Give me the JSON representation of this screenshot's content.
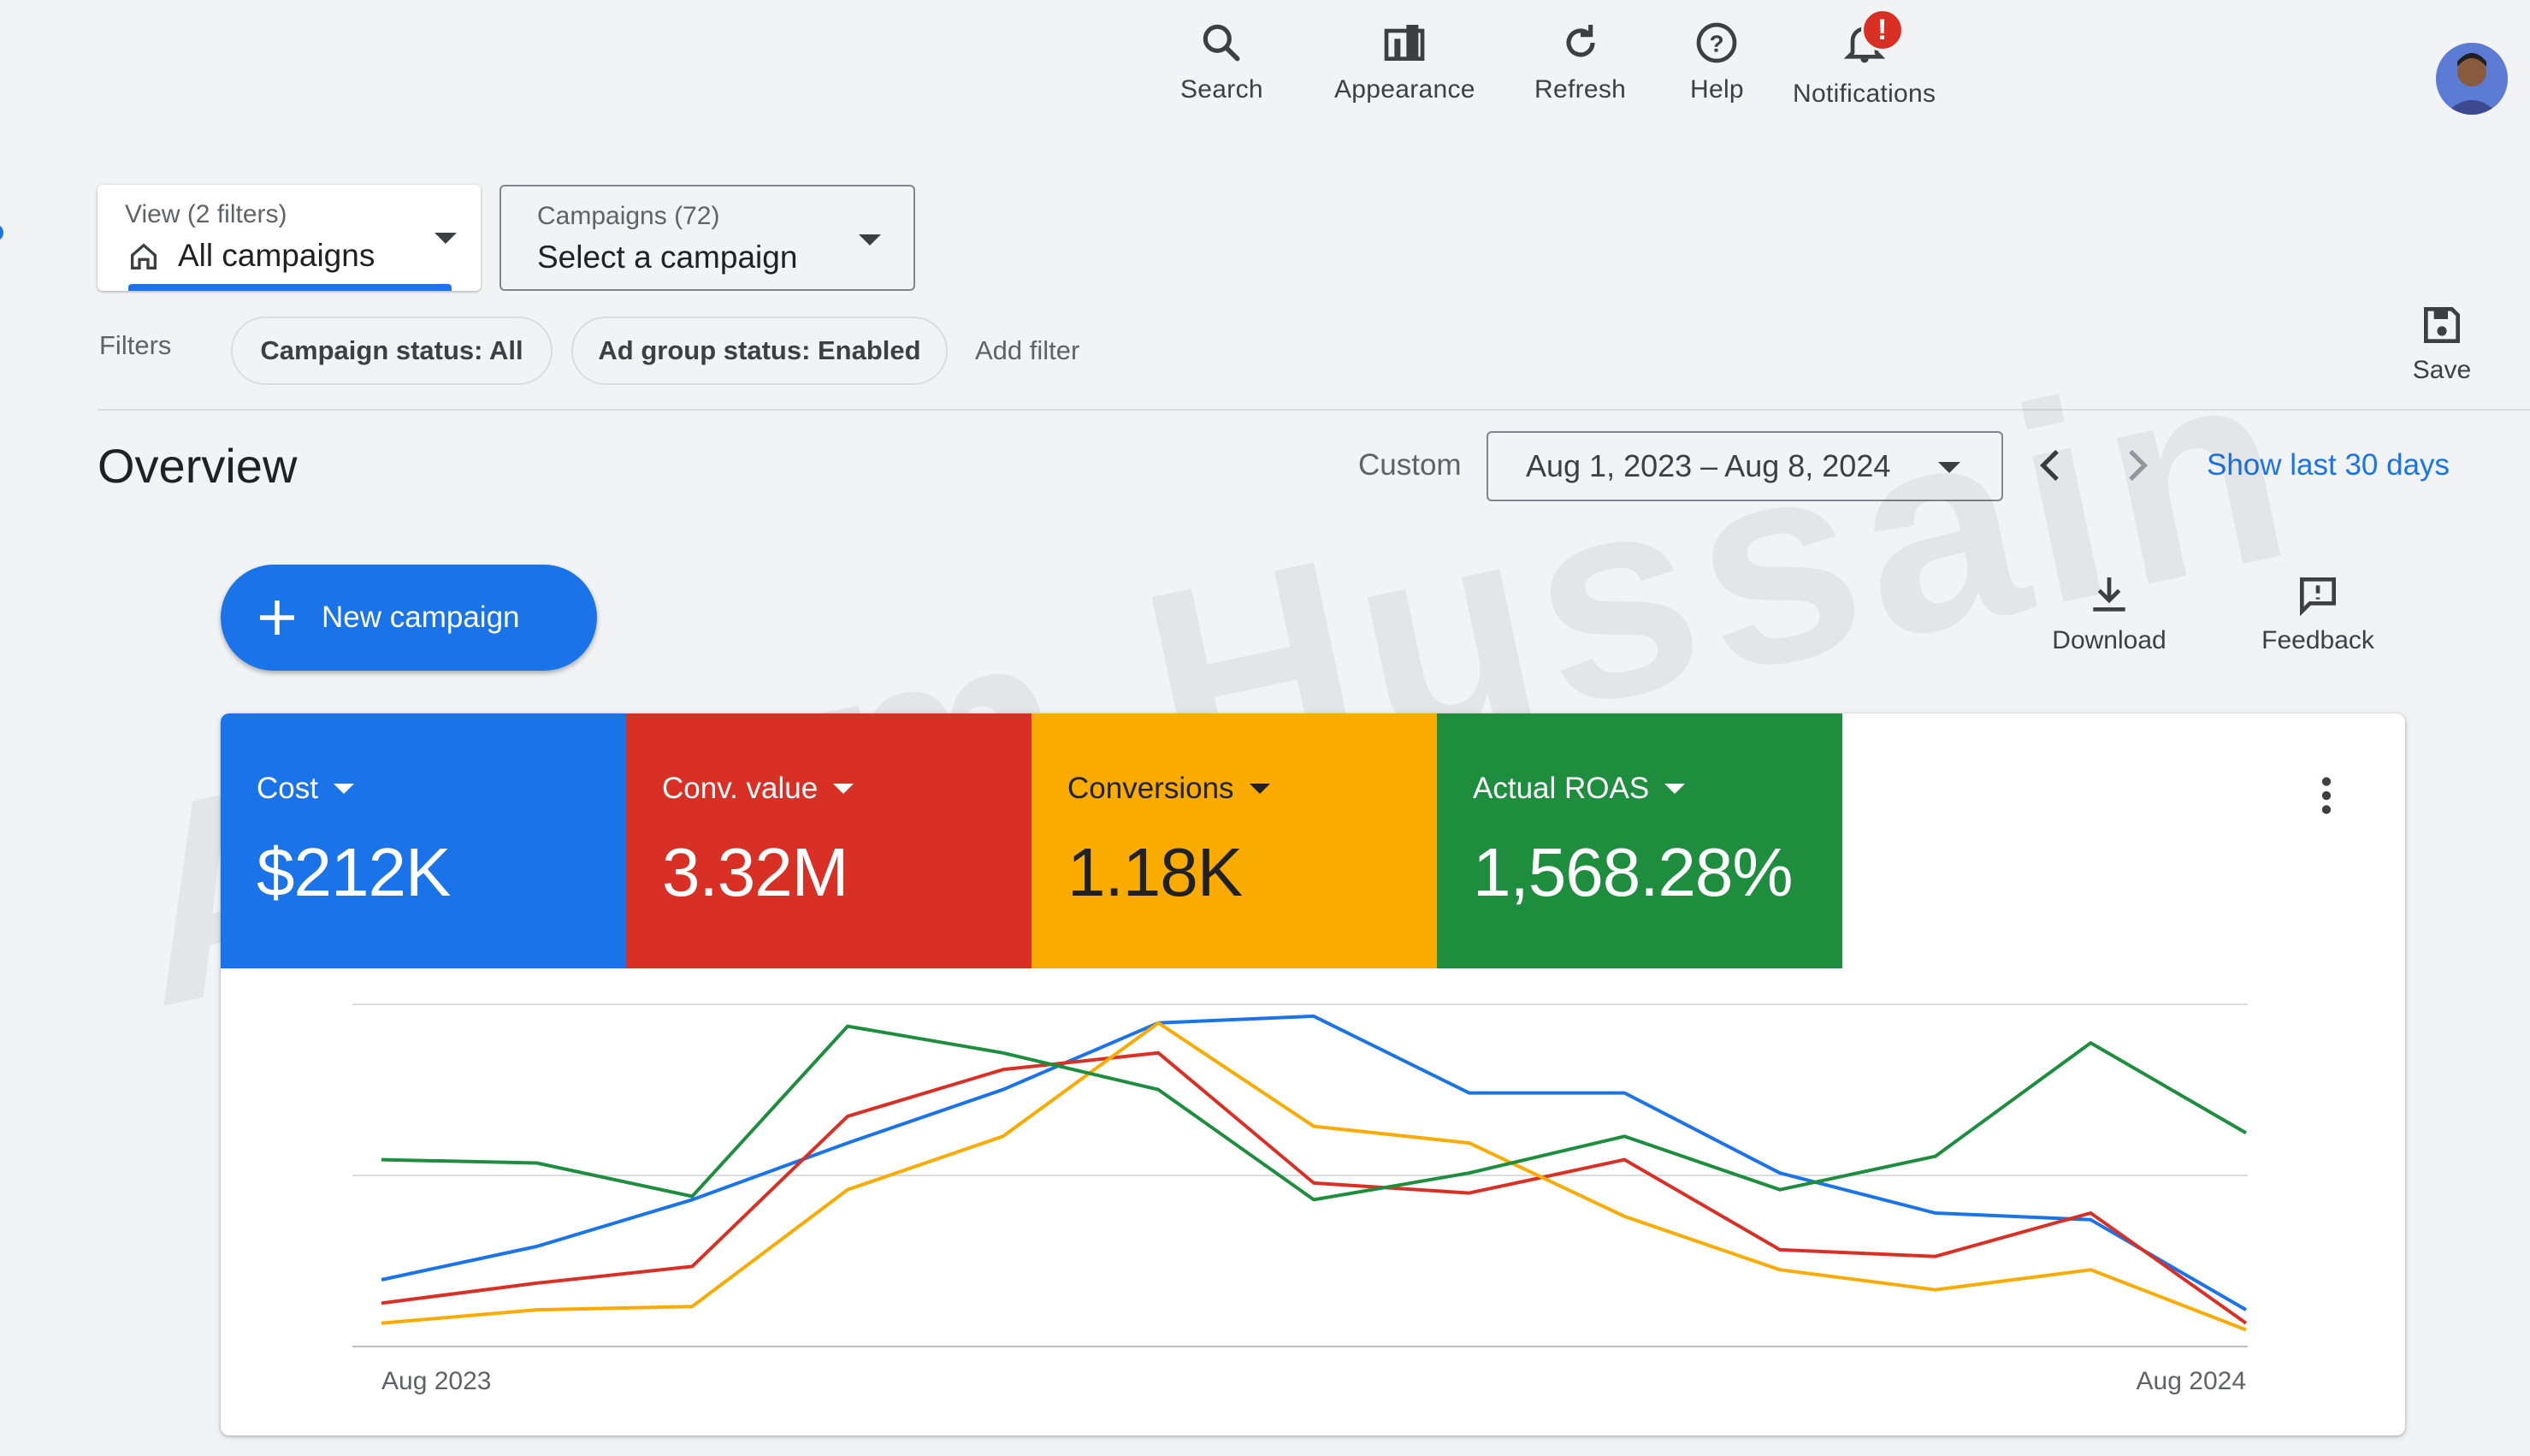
{
  "toolbar": {
    "items": [
      {
        "label": "Search",
        "icon": "search-icon"
      },
      {
        "label": "Appearance",
        "icon": "appearance-icon"
      },
      {
        "label": "Refresh",
        "icon": "refresh-icon"
      },
      {
        "label": "Help",
        "icon": "help-icon"
      },
      {
        "label": "Notifications",
        "icon": "bell-icon",
        "badge": "!"
      }
    ]
  },
  "view_selector": {
    "label": "View (2 filters)",
    "value": "All campaigns"
  },
  "campaign_selector": {
    "label": "Campaigns (72)",
    "value": "Select a campaign"
  },
  "filters": {
    "label": "Filters",
    "chips": [
      "Campaign status: All",
      "Ad group status: Enabled"
    ],
    "add": "Add filter"
  },
  "save_label": "Save",
  "overview": {
    "title": "Overview",
    "range_type": "Custom",
    "date_range": "Aug 1, 2023 – Aug 8, 2024",
    "show_last": "Show last 30 days"
  },
  "new_campaign_label": "New campaign",
  "download_label": "Download",
  "feedback_label": "Feedback",
  "metrics": [
    {
      "name": "Cost",
      "value": "$212K",
      "color": "#1a73e8"
    },
    {
      "name": "Conv. value",
      "value": "3.32M",
      "color": "#d93025"
    },
    {
      "name": "Conversions",
      "value": "1.18K",
      "color": "#f9ab00"
    },
    {
      "name": "Actual ROAS",
      "value": "1,568.28%",
      "color": "#1e8e3e"
    }
  ],
  "watermark": "Azeem Hussain",
  "chart_data": {
    "type": "line",
    "x_labels": [
      "Aug 2023",
      "Aug 2024"
    ],
    "grid": true,
    "legend": "metric tiles above chart",
    "y_axis_normalized": [
      0,
      100
    ],
    "series": [
      {
        "name": "Cost",
        "color": "#1a73e8",
        "values": [
          20,
          30,
          44,
          61,
          77,
          97,
          99,
          76,
          76,
          52,
          40,
          38,
          11
        ]
      },
      {
        "name": "Conv. value",
        "color": "#d93025",
        "values": [
          13,
          19,
          24,
          69,
          83,
          88,
          49,
          46,
          56,
          29,
          27,
          40,
          7
        ]
      },
      {
        "name": "Conversions",
        "color": "#f9ab00",
        "values": [
          7,
          11,
          12,
          47,
          63,
          97,
          66,
          61,
          39,
          23,
          17,
          23,
          5
        ]
      },
      {
        "name": "Actual ROAS",
        "color": "#1e8e3e",
        "values": [
          56,
          55,
          45,
          96,
          88,
          77,
          44,
          52,
          63,
          47,
          57,
          91,
          64
        ]
      }
    ]
  }
}
